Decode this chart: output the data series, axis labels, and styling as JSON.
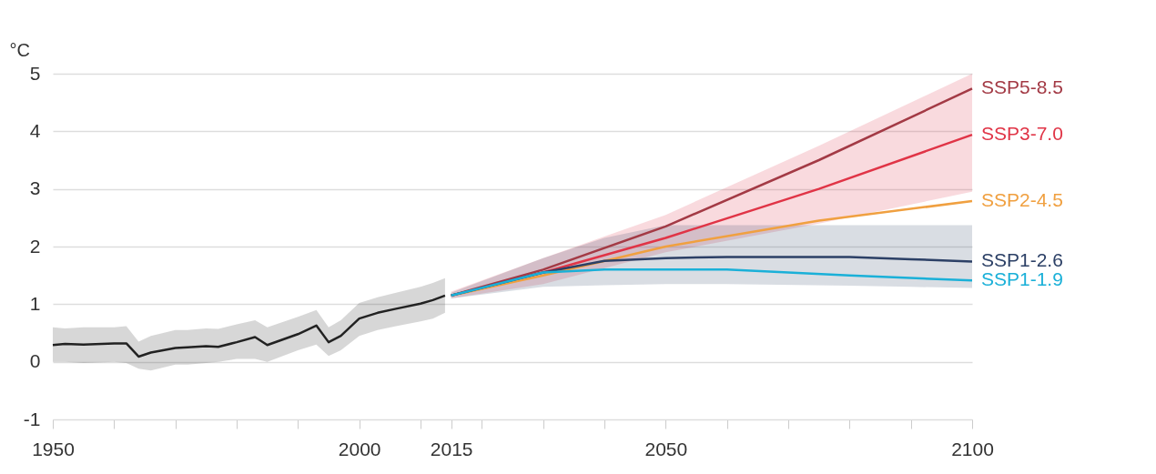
{
  "chart_data": {
    "type": "line",
    "ylabel": "°C",
    "xlim": [
      1950,
      2100
    ],
    "xticks": [
      1950,
      {
        "value": 1960,
        "label": null
      },
      {
        "value": 1970,
        "label": null
      },
      {
        "value": 1980,
        "label": null
      },
      {
        "value": 1990,
        "label": null
      },
      2000,
      {
        "value": 2010,
        "label": null
      },
      2015,
      {
        "value": 2020,
        "label": null
      },
      {
        "value": 2030,
        "label": null
      },
      {
        "value": 2040,
        "label": null
      },
      2050,
      {
        "value": 2060,
        "label": null
      },
      {
        "value": 2070,
        "label": null
      },
      {
        "value": 2080,
        "label": null
      },
      {
        "value": 2090,
        "label": null
      },
      2100
    ],
    "ylim": [
      -1,
      5
    ],
    "yticks": [
      -1,
      0,
      1,
      2,
      3,
      4,
      5
    ],
    "grid": "y",
    "series": [
      {
        "color": "#222222",
        "x": [
          1950,
          1952,
          1955,
          1960,
          1962,
          1964,
          1966,
          1970,
          1972,
          1975,
          1977,
          1980,
          1983,
          1985,
          1990,
          1993,
          1995,
          1997,
          2000,
          2003,
          2006,
          2010,
          2012,
          2014
        ],
        "values": [
          0.29,
          0.31,
          0.3,
          0.32,
          0.32,
          0.09,
          0.16,
          0.24,
          0.25,
          0.27,
          0.26,
          0.34,
          0.43,
          0.29,
          0.48,
          0.63,
          0.34,
          0.45,
          0.75,
          0.85,
          0.92,
          1.01,
          1.07,
          1.15
        ],
        "lower": [
          0.0,
          0.0,
          -0.02,
          0.0,
          -0.02,
          -0.12,
          -0.15,
          -0.05,
          -0.05,
          -0.02,
          0.0,
          0.05,
          0.05,
          0.0,
          0.2,
          0.3,
          0.1,
          0.2,
          0.45,
          0.55,
          0.62,
          0.7,
          0.75,
          0.85
        ],
        "upper": [
          0.6,
          0.58,
          0.6,
          0.6,
          0.62,
          0.35,
          0.45,
          0.55,
          0.55,
          0.58,
          0.57,
          0.65,
          0.72,
          0.6,
          0.78,
          0.9,
          0.6,
          0.72,
          1.02,
          1.12,
          1.2,
          1.3,
          1.37,
          1.45
        ]
      },
      {
        "name": "SSP5-8.5",
        "color": "#a33a45",
        "x": [
          2015,
          2030,
          2050,
          2075,
          2100
        ],
        "values": [
          1.15,
          1.6,
          2.35,
          3.5,
          4.74
        ]
      },
      {
        "name": "SSP3-7.0",
        "color": "#e03446",
        "x": [
          2015,
          2030,
          2050,
          2075,
          2100
        ],
        "values": [
          1.15,
          1.55,
          2.15,
          3.0,
          3.94
        ],
        "lower": [
          1.1,
          1.35,
          1.9,
          2.4,
          2.95
        ],
        "upper": [
          1.22,
          1.8,
          2.55,
          3.75,
          5.0
        ]
      },
      {
        "name": "SSP2-4.5",
        "color": "#f0a040",
        "x": [
          2015,
          2030,
          2050,
          2075,
          2100
        ],
        "values": [
          1.15,
          1.5,
          2.0,
          2.45,
          2.79
        ]
      },
      {
        "name": "SSP1-2.6",
        "color": "#2c4066",
        "x": [
          2015,
          2030,
          2040,
          2050,
          2060,
          2080,
          2090,
          2100
        ],
        "values": [
          1.15,
          1.55,
          1.75,
          1.8,
          1.82,
          1.82,
          1.78,
          1.74
        ],
        "lower": [
          1.1,
          1.3,
          1.33,
          1.35,
          1.35,
          1.32,
          1.3,
          1.28
        ],
        "upper": [
          1.2,
          1.8,
          2.15,
          2.37,
          2.37,
          2.37,
          2.37,
          2.37
        ]
      },
      {
        "name": "SSP1-1.9",
        "color": "#1ab0d8",
        "x": [
          2015,
          2030,
          2040,
          2060,
          2080,
          2100
        ],
        "values": [
          1.15,
          1.55,
          1.6,
          1.6,
          1.5,
          1.41
        ]
      }
    ]
  }
}
